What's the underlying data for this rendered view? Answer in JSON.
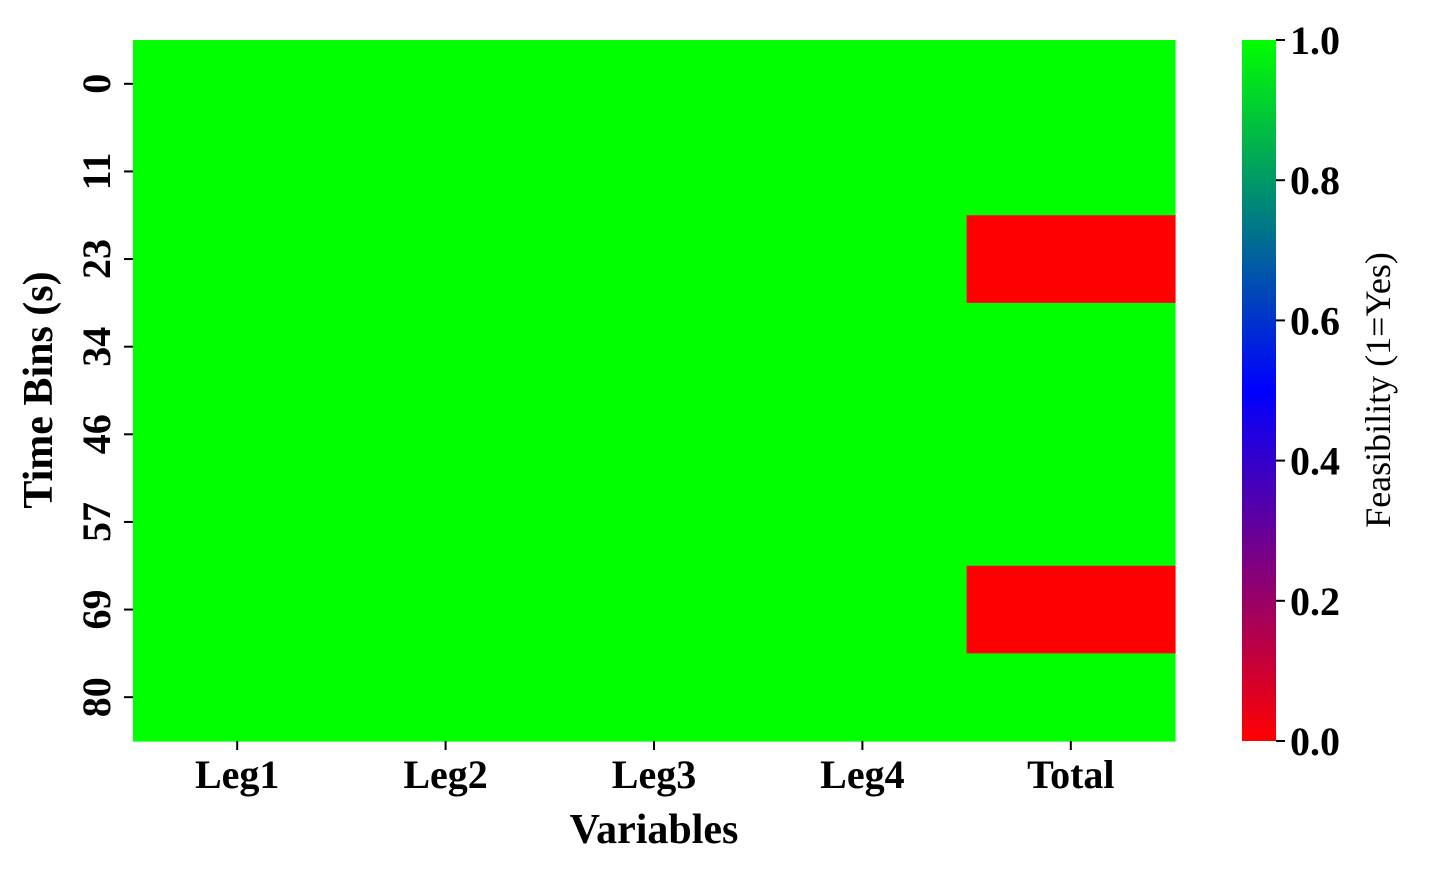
{
  "chart_data": {
    "type": "heatmap",
    "title": "",
    "xlabel": "Variables",
    "ylabel": "Time Bins (s)",
    "x_categories": [
      "Leg1",
      "Leg2",
      "Leg3",
      "Leg4",
      "Total"
    ],
    "y_categories": [
      "0",
      "11",
      "23",
      "34",
      "46",
      "57",
      "69",
      "80"
    ],
    "values": [
      [
        1,
        1,
        1,
        1,
        1
      ],
      [
        1,
        1,
        1,
        1,
        1
      ],
      [
        1,
        1,
        1,
        1,
        0
      ],
      [
        1,
        1,
        1,
        1,
        1
      ],
      [
        1,
        1,
        1,
        1,
        1
      ],
      [
        1,
        1,
        1,
        1,
        1
      ],
      [
        1,
        1,
        1,
        1,
        0
      ],
      [
        1,
        1,
        1,
        1,
        1
      ]
    ],
    "colorbar": {
      "label": "Feasibility (1=Yes)",
      "range": [
        0.0,
        1.0
      ],
      "ticks": [
        "0.0",
        "0.2",
        "0.4",
        "0.6",
        "0.8",
        "1.0"
      ],
      "tick_values": [
        0.0,
        0.2,
        0.4,
        0.6,
        0.8,
        1.0
      ],
      "colormap": [
        "#ff0000",
        "#0000ff",
        "#00ff00"
      ],
      "placement": "right"
    },
    "grid": false
  }
}
